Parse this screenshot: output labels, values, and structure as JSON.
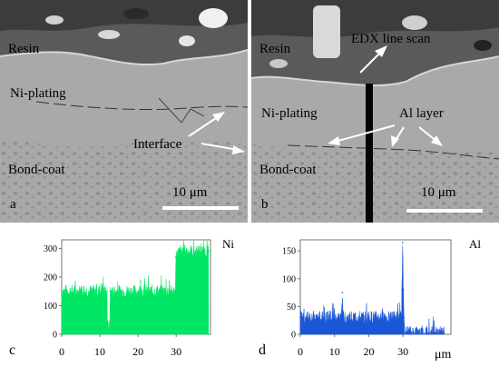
{
  "panels": {
    "a": {
      "letter": "a",
      "labels": {
        "resin": "Resin",
        "ni_plating": "Ni-plating",
        "interface": "Interface",
        "bond_coat": "Bond-coat"
      },
      "scale_bar": "10 μm"
    },
    "b": {
      "letter": "b",
      "labels": {
        "resin": "Resin",
        "edx": "EDX line scan",
        "ni_plating": "Ni-plating",
        "al_layer": "Al layer",
        "bond_coat": "Bond-coat"
      },
      "scale_bar": "10 μm"
    }
  },
  "chart_data": [
    {
      "type": "area",
      "panel_letter": "c",
      "element": "Ni",
      "unit": "μm",
      "color": "#00e664",
      "x_ticks": [
        "0",
        "10",
        "20",
        "30"
      ],
      "y_ticks": [
        "0",
        "100",
        "200",
        "300"
      ],
      "xlim": [
        0,
        39
      ],
      "ylim": [
        0,
        330
      ],
      "x": [
        0,
        11.9,
        12.0,
        12.6,
        12.7,
        29.8,
        29.9,
        30.6,
        31.1,
        32,
        34,
        36,
        38.5
      ],
      "y": [
        150,
        150,
        25,
        25,
        150,
        150,
        270,
        285,
        290,
        290,
        290,
        290,
        290
      ]
    },
    {
      "type": "area",
      "panel_letter": "d",
      "element": "Al",
      "unit": "μm",
      "color": "#1a57d8",
      "x_ticks": [
        "0",
        "10",
        "20",
        "30"
      ],
      "y_ticks": [
        "0",
        "50",
        "100",
        "150"
      ],
      "xlim": [
        0,
        44
      ],
      "ylim": [
        0,
        170
      ],
      "x": [
        0,
        12.0,
        12.3,
        12.6,
        29.6,
        29.7,
        29.9,
        30.1,
        30.3,
        30.5,
        34,
        38,
        42
      ],
      "y": [
        30,
        30,
        75,
        30,
        30,
        80,
        165,
        80,
        30,
        3,
        3,
        3,
        3
      ]
    }
  ]
}
